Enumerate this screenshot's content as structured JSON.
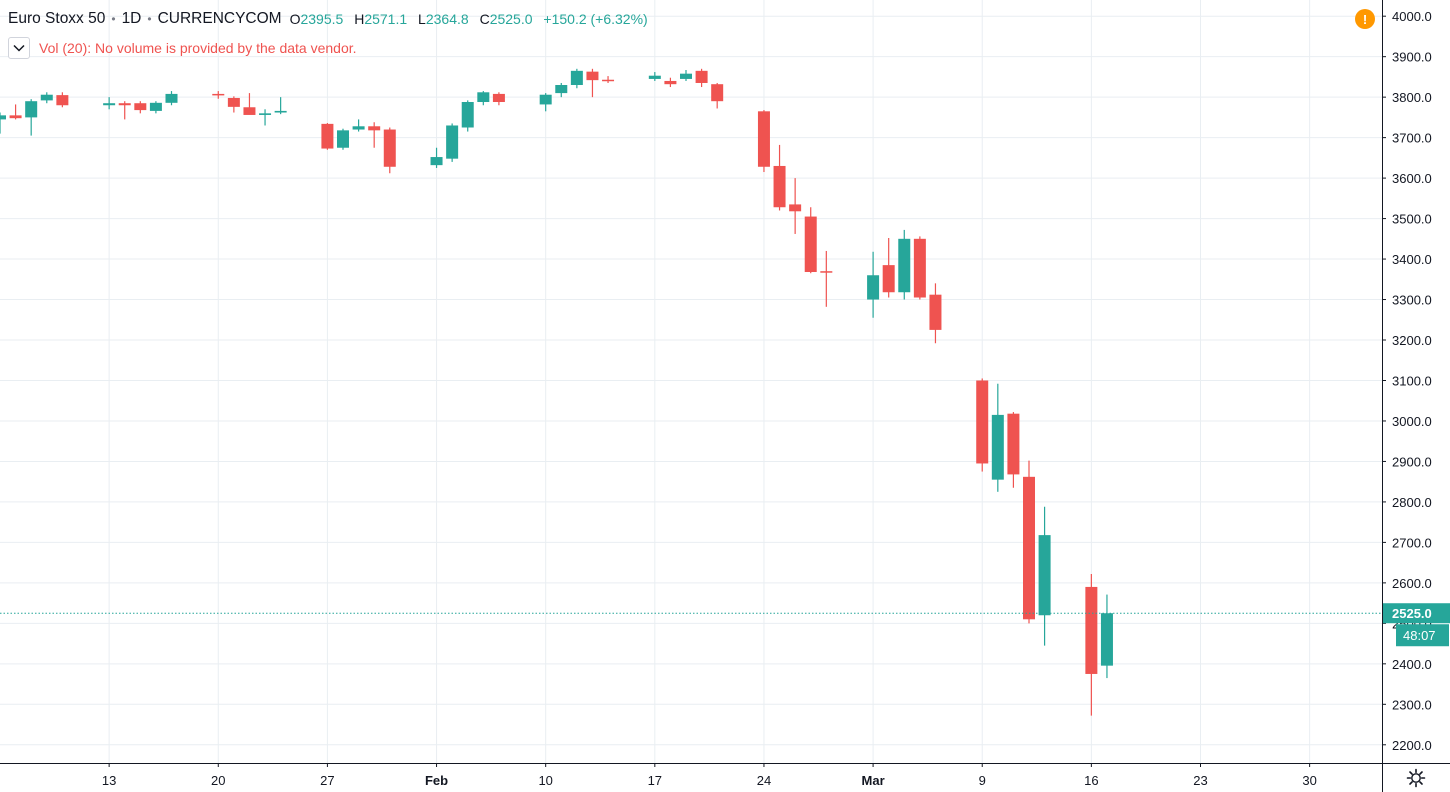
{
  "legend": {
    "symbol": "Euro Stoxx 50",
    "interval": "1D",
    "source": "CURRENCYCOM",
    "open_label": "O",
    "open": "2395.5",
    "high_label": "H",
    "high": "2571.1",
    "low_label": "L",
    "low": "2364.8",
    "close_label": "C",
    "close": "2525.0",
    "change": "+150.2 (+6.32%)"
  },
  "volume": {
    "message": "Vol (20): No volume is provided by the data vendor."
  },
  "price_label": {
    "value": "2525.0",
    "countdown": "48:07"
  },
  "icons": {
    "alert": "warning-icon",
    "settings": "gear-icon",
    "toggle": "chevron-down-icon",
    "alert_glyph": "!"
  },
  "colors": {
    "up": "#26a69a",
    "down": "#ef5350",
    "grid": "#e9eef2",
    "alert": "#ff9800"
  },
  "chart_data": {
    "type": "candlestick",
    "y_ticks": [
      "2200.0",
      "2300.0",
      "2400.0",
      "2500.0",
      "2600.0",
      "2700.0",
      "2800.0",
      "2900.0",
      "3000.0",
      "3100.0",
      "3200.0",
      "3300.0",
      "3400.0",
      "3500.0",
      "3600.0",
      "3700.0",
      "3800.0",
      "3900.0",
      "4000.0"
    ],
    "x_ticks": [
      {
        "label": "13",
        "date": "2020-01-13"
      },
      {
        "label": "20",
        "date": "2020-01-20"
      },
      {
        "label": "27",
        "date": "2020-01-27"
      },
      {
        "label": "Feb",
        "date": "2020-02-03"
      },
      {
        "label": "10",
        "date": "2020-02-10"
      },
      {
        "label": "17",
        "date": "2020-02-17"
      },
      {
        "label": "24",
        "date": "2020-02-24"
      },
      {
        "label": "Mar",
        "date": "2020-03-02"
      },
      {
        "label": "9",
        "date": "2020-03-09"
      },
      {
        "label": "16",
        "date": "2020-03-16"
      },
      {
        "label": "23",
        "date": "2020-03-23"
      },
      {
        "label": "30",
        "date": "2020-03-30"
      }
    ],
    "ylim": [
      2155,
      4040
    ],
    "xlim": [
      "2020-01-06",
      "2020-04-03"
    ],
    "last_price": 2525.0,
    "candles": [
      {
        "date": "2020-01-06",
        "o": 3745,
        "h": 3762,
        "l": 3710,
        "c": 3755
      },
      {
        "date": "2020-01-07",
        "o": 3755,
        "h": 3782,
        "l": 3745,
        "c": 3748
      },
      {
        "date": "2020-01-08",
        "o": 3750,
        "h": 3795,
        "l": 3705,
        "c": 3790
      },
      {
        "date": "2020-01-09",
        "o": 3792,
        "h": 3812,
        "l": 3785,
        "c": 3806
      },
      {
        "date": "2020-01-10",
        "o": 3805,
        "h": 3812,
        "l": 3775,
        "c": 3780
      },
      {
        "date": "2020-01-13",
        "o": 3780,
        "h": 3800,
        "l": 3770,
        "c": 3785
      },
      {
        "date": "2020-01-14",
        "o": 3785,
        "h": 3790,
        "l": 3745,
        "c": 3780
      },
      {
        "date": "2020-01-15",
        "o": 3785,
        "h": 3790,
        "l": 3760,
        "c": 3768
      },
      {
        "date": "2020-01-16",
        "o": 3766,
        "h": 3790,
        "l": 3760,
        "c": 3786
      },
      {
        "date": "2020-01-17",
        "o": 3786,
        "h": 3815,
        "l": 3780,
        "c": 3808
      },
      {
        "date": "2020-01-20",
        "o": 3808,
        "h": 3815,
        "l": 3796,
        "c": 3805
      },
      {
        "date": "2020-01-21",
        "o": 3798,
        "h": 3802,
        "l": 3762,
        "c": 3776
      },
      {
        "date": "2020-01-22",
        "o": 3775,
        "h": 3810,
        "l": 3760,
        "c": 3756
      },
      {
        "date": "2020-01-23",
        "o": 3756,
        "h": 3770,
        "l": 3730,
        "c": 3760
      },
      {
        "date": "2020-01-24",
        "o": 3762,
        "h": 3800,
        "l": 3758,
        "c": 3766
      },
      {
        "date": "2020-01-27",
        "o": 3734,
        "h": 3736,
        "l": 3670,
        "c": 3673
      },
      {
        "date": "2020-01-28",
        "o": 3675,
        "h": 3722,
        "l": 3670,
        "c": 3718
      },
      {
        "date": "2020-01-29",
        "o": 3720,
        "h": 3745,
        "l": 3715,
        "c": 3728
      },
      {
        "date": "2020-01-30",
        "o": 3728,
        "h": 3738,
        "l": 3675,
        "c": 3718
      },
      {
        "date": "2020-01-31",
        "o": 3720,
        "h": 3725,
        "l": 3612,
        "c": 3628
      },
      {
        "date": "2020-02-03",
        "o": 3632,
        "h": 3675,
        "l": 3625,
        "c": 3652
      },
      {
        "date": "2020-02-04",
        "o": 3648,
        "h": 3735,
        "l": 3640,
        "c": 3730
      },
      {
        "date": "2020-02-05",
        "o": 3725,
        "h": 3792,
        "l": 3715,
        "c": 3788
      },
      {
        "date": "2020-02-06",
        "o": 3788,
        "h": 3815,
        "l": 3780,
        "c": 3812
      },
      {
        "date": "2020-02-07",
        "o": 3808,
        "h": 3812,
        "l": 3780,
        "c": 3788
      },
      {
        "date": "2020-02-10",
        "o": 3782,
        "h": 3810,
        "l": 3765,
        "c": 3806
      },
      {
        "date": "2020-02-11",
        "o": 3810,
        "h": 3835,
        "l": 3800,
        "c": 3830
      },
      {
        "date": "2020-02-12",
        "o": 3830,
        "h": 3870,
        "l": 3822,
        "c": 3865
      },
      {
        "date": "2020-02-13",
        "o": 3863,
        "h": 3870,
        "l": 3800,
        "c": 3842
      },
      {
        "date": "2020-02-14",
        "o": 3843,
        "h": 3852,
        "l": 3835,
        "c": 3840
      },
      {
        "date": "2020-02-17",
        "o": 3845,
        "h": 3862,
        "l": 3840,
        "c": 3853
      },
      {
        "date": "2020-02-18",
        "o": 3840,
        "h": 3848,
        "l": 3825,
        "c": 3832
      },
      {
        "date": "2020-02-19",
        "o": 3845,
        "h": 3867,
        "l": 3840,
        "c": 3858
      },
      {
        "date": "2020-02-20",
        "o": 3865,
        "h": 3870,
        "l": 3825,
        "c": 3835
      },
      {
        "date": "2020-02-21",
        "o": 3832,
        "h": 3835,
        "l": 3772,
        "c": 3790
      },
      {
        "date": "2020-02-24",
        "o": 3765,
        "h": 3768,
        "l": 3615,
        "c": 3628
      },
      {
        "date": "2020-02-25",
        "o": 3630,
        "h": 3682,
        "l": 3520,
        "c": 3528
      },
      {
        "date": "2020-02-26",
        "o": 3535,
        "h": 3600,
        "l": 3462,
        "c": 3518
      },
      {
        "date": "2020-02-27",
        "o": 3505,
        "h": 3528,
        "l": 3365,
        "c": 3368
      },
      {
        "date": "2020-02-28",
        "o": 3370,
        "h": 3420,
        "l": 3282,
        "c": 3368
      },
      {
        "date": "2020-03-02",
        "o": 3300,
        "h": 3418,
        "l": 3255,
        "c": 3360
      },
      {
        "date": "2020-03-03",
        "o": 3385,
        "h": 3452,
        "l": 3305,
        "c": 3318
      },
      {
        "date": "2020-03-04",
        "o": 3318,
        "h": 3472,
        "l": 3300,
        "c": 3450
      },
      {
        "date": "2020-03-05",
        "o": 3450,
        "h": 3456,
        "l": 3300,
        "c": 3305
      },
      {
        "date": "2020-03-06",
        "o": 3312,
        "h": 3340,
        "l": 3192,
        "c": 3225
      },
      {
        "date": "2020-03-09",
        "o": 3100,
        "h": 3105,
        "l": 2875,
        "c": 2895
      },
      {
        "date": "2020-03-10",
        "o": 2855,
        "h": 3092,
        "l": 2825,
        "c": 3015
      },
      {
        "date": "2020-03-11",
        "o": 3018,
        "h": 3022,
        "l": 2835,
        "c": 2868
      },
      {
        "date": "2020-03-12",
        "o": 2862,
        "h": 2902,
        "l": 2500,
        "c": 2510
      },
      {
        "date": "2020-03-13",
        "o": 2520,
        "h": 2788,
        "l": 2445,
        "c": 2718
      },
      {
        "date": "2020-03-16",
        "o": 2590,
        "h": 2622,
        "l": 2272,
        "c": 2375
      },
      {
        "date": "2020-03-17",
        "o": 2395.5,
        "h": 2571.1,
        "l": 2364.8,
        "c": 2525.0
      }
    ]
  }
}
